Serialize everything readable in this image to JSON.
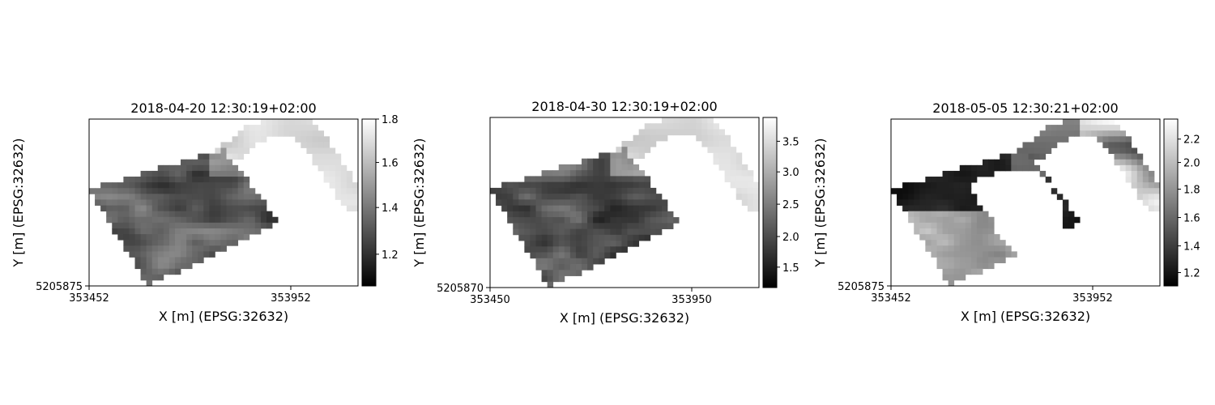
{
  "chart_data": [
    {
      "type": "heatmap",
      "title": "2018-04-20 12:30:19+02:00",
      "xlabel": "X [m] (EPSG:32632)",
      "ylabel": "Y [m] (EPSG:32632)",
      "x_ticks": [
        "353452",
        "353952"
      ],
      "y_ticks": [
        "5205875"
      ],
      "colormap": "gray",
      "colorbar_ticks": [
        "1.2",
        "1.4",
        "1.6",
        "1.8"
      ],
      "value_range": [
        1.09,
        1.84
      ],
      "shape": "field-polygon-with-tail",
      "masked_area": false
    },
    {
      "type": "heatmap",
      "title": "2018-04-30 12:30:19+02:00",
      "xlabel": "X [m] (EPSG:32632)",
      "ylabel": "Y [m] (EPSG:32632)",
      "x_ticks": [
        "353450",
        "353950"
      ],
      "y_ticks": [
        "5205870"
      ],
      "colormap": "gray",
      "colorbar_ticks": [
        "1.5",
        "2.0",
        "2.5",
        "3.0",
        "3.5"
      ],
      "value_range": [
        1.18,
        3.88
      ],
      "shape": "field-polygon-with-tail",
      "masked_area": false
    },
    {
      "type": "heatmap",
      "title": "2018-05-05 12:30:21+02:00",
      "xlabel": "X [m] (EPSG:32632)",
      "ylabel": "Y [m] (EPSG:32632)",
      "x_ticks": [
        "353452",
        "353952"
      ],
      "y_ticks": [
        "5205875"
      ],
      "colormap": "gray",
      "colorbar_ticks": [
        "1.2",
        "1.4",
        "1.6",
        "1.8",
        "2.0",
        "2.2"
      ],
      "value_range": [
        1.04,
        2.31
      ],
      "shape": "field-polygon-with-tail",
      "masked_area": true
    }
  ]
}
